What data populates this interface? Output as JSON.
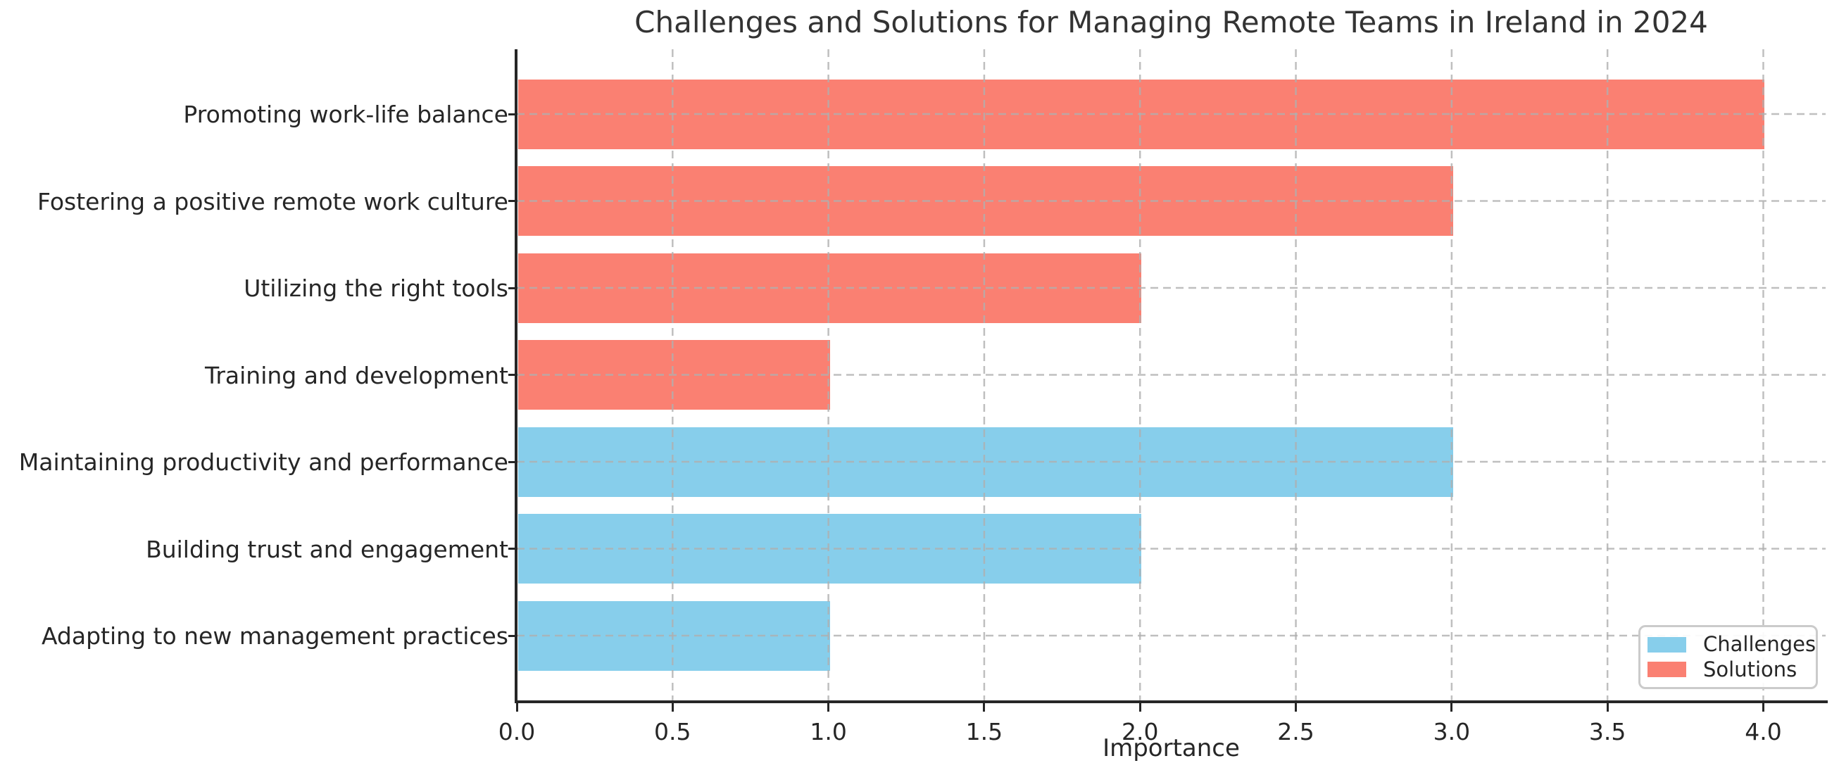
{
  "chart_data": {
    "type": "bar",
    "orientation": "horizontal",
    "title": "Challenges and Solutions for Managing Remote Teams in Ireland in 2024",
    "xlabel": "Importance",
    "ylabel": "",
    "categories": [
      "Promoting work-life balance",
      "Fostering a positive remote work culture",
      "Utilizing the right tools",
      "Training and development",
      "Maintaining productivity and performance",
      "Building trust and engagement",
      "Adapting to new management practices"
    ],
    "values": [
      4,
      3,
      2,
      1,
      3,
      2,
      1
    ],
    "bar_series": [
      "Solutions",
      "Solutions",
      "Solutions",
      "Solutions",
      "Challenges",
      "Challenges",
      "Challenges"
    ],
    "series_colors": {
      "Challenges": "#87CEEB",
      "Solutions": "#FA8072"
    },
    "legend": [
      {
        "label": "Challenges",
        "color": "#87CEEB"
      },
      {
        "label": "Solutions",
        "color": "#FA8072"
      }
    ],
    "legend_position": "lower right",
    "xlim": [
      0,
      4.2
    ],
    "x_ticks": [
      "0.0",
      "0.5",
      "1.0",
      "1.5",
      "2.0",
      "2.5",
      "3.0",
      "3.5",
      "4.0"
    ],
    "grid": {
      "style": "dashed",
      "color": "#b0b0b0",
      "on": true
    }
  }
}
